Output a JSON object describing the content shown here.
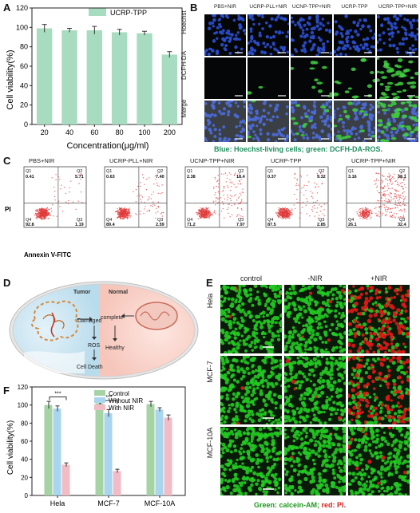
{
  "panels": {
    "a": "A",
    "b": "B",
    "c": "C",
    "d": "D",
    "e": "E",
    "f": "F"
  },
  "colors": {
    "bar_green": "#a8dcc0",
    "hoechst_blue": "#2b4fd0",
    "dcfh_green": "#3fcf3f",
    "calcein_green": "#22c922",
    "pi_red": "#e01818",
    "caption_green": "#1e8f5f",
    "caption_red": "#d81e1e",
    "flow_red": "#e23b3b"
  },
  "chart_data": [
    {
      "type": "bar",
      "panel": "A",
      "categories": [
        "20",
        "40",
        "60",
        "80",
        "100",
        "200"
      ],
      "series": [
        {
          "name": "UCRP-TPP",
          "values": [
            99,
            97,
            97,
            95,
            94,
            72
          ],
          "errors": [
            4,
            2,
            4,
            3,
            2,
            3
          ]
        }
      ],
      "xlabel": "Concentration(μg/ml)",
      "ylabel": "Cell viability(%)",
      "ylim": [
        0,
        120
      ],
      "yticks": [
        "0",
        "20",
        "40",
        "60",
        "80",
        "100",
        "120"
      ],
      "legend": "top-right"
    },
    {
      "type": "bar",
      "panel": "F",
      "categories": [
        "Hela",
        "MCF-7",
        "MCF-10A"
      ],
      "series": [
        {
          "name": "Control",
          "values": [
            100,
            102,
            101
          ],
          "errors": [
            4,
            5,
            3
          ]
        },
        {
          "name": "Without NIR",
          "values": [
            96,
            91,
            95
          ],
          "errors": [
            3,
            4,
            2
          ]
        },
        {
          "name": "With NIR",
          "values": [
            34,
            27,
            86
          ],
          "errors": [
            2,
            2,
            3
          ]
        }
      ],
      "significance": [
        "***",
        "***"
      ],
      "xlabel": "",
      "ylabel": "Cell viability(%)",
      "ylim": [
        0,
        120
      ],
      "yticks": [
        "0",
        "20",
        "40",
        "60",
        "80",
        "100",
        "120"
      ],
      "legend": "top-right"
    }
  ],
  "panel_b": {
    "columns": [
      "PBS+NIR",
      "UCRP-PLL+NIR",
      "UCNP-TPP+NIR",
      "UCRP-TPP",
      "UCRP-TPP+NIR"
    ],
    "rows": [
      "Hoechst",
      "DCFH-DA",
      "Merge"
    ],
    "caption_part1": "Blue: Hoechst-living cells;",
    "caption_part2": "green: DCFH-DA-ROS."
  },
  "panel_c": {
    "ylabel": "PI",
    "xlabel": "Annexin V-FITC",
    "plots": [
      {
        "title": "PBS+NIR",
        "q1": "Q1",
        "q1v": "0.41",
        "q2": "Q2",
        "q2v": "5.71",
        "q3": "Q3",
        "q3v": "1.19",
        "q4": "Q4",
        "q4v": "92.8",
        "spread": 0.1
      },
      {
        "title": "UCRP-PLL+NIR",
        "q1": "Q1",
        "q1v": "0.63",
        "q2": "Q2",
        "q2v": "7.40",
        "q3": "Q3",
        "q3v": "2.59",
        "q4": "Q4",
        "q4v": "89.4",
        "spread": 0.2
      },
      {
        "title": "UCNP-TPP+NIR",
        "q1": "Q1",
        "q1v": "2.38",
        "q2": "Q2",
        "q2v": "18.4",
        "q3": "Q3",
        "q3v": "7.97",
        "q4": "Q4",
        "q4v": "71.2",
        "spread": 0.45
      },
      {
        "title": "UCRP-TPP",
        "q1": "Q1",
        "q1v": "0.37",
        "q2": "Q2",
        "q2v": "9.32",
        "q3": "Q3",
        "q3v": "2.85",
        "q4": "Q4",
        "q4v": "87.5",
        "spread": 0.25
      },
      {
        "title": "UCRP-TPP+NIR",
        "q1": "Q1",
        "q1v": "3.16",
        "q2": "Q2",
        "q2v": "38.1",
        "q3": "Q3",
        "q3v": "32.4",
        "q4": "Q4",
        "q4v": "26.1",
        "spread": 0.85
      }
    ]
  },
  "panel_d": {
    "tumor": "Tumor",
    "normal": "Normal",
    "damaged": "Damaged",
    "ros": "ROS",
    "cell_death": "Cell Death",
    "complete": "complete",
    "healthy": "Healthy"
  },
  "panel_e": {
    "columns": [
      "control",
      "-NIR",
      "+NIR"
    ],
    "rows": [
      "Hela",
      "MCF-7",
      "MCF-10A"
    ],
    "red_fraction": [
      [
        0.02,
        0.03,
        0.62
      ],
      [
        0.01,
        0.02,
        0.55
      ],
      [
        0.01,
        0.01,
        0.03
      ]
    ],
    "caption_part1": "Green: calcein-AM;",
    "caption_part2": "red: PI."
  }
}
